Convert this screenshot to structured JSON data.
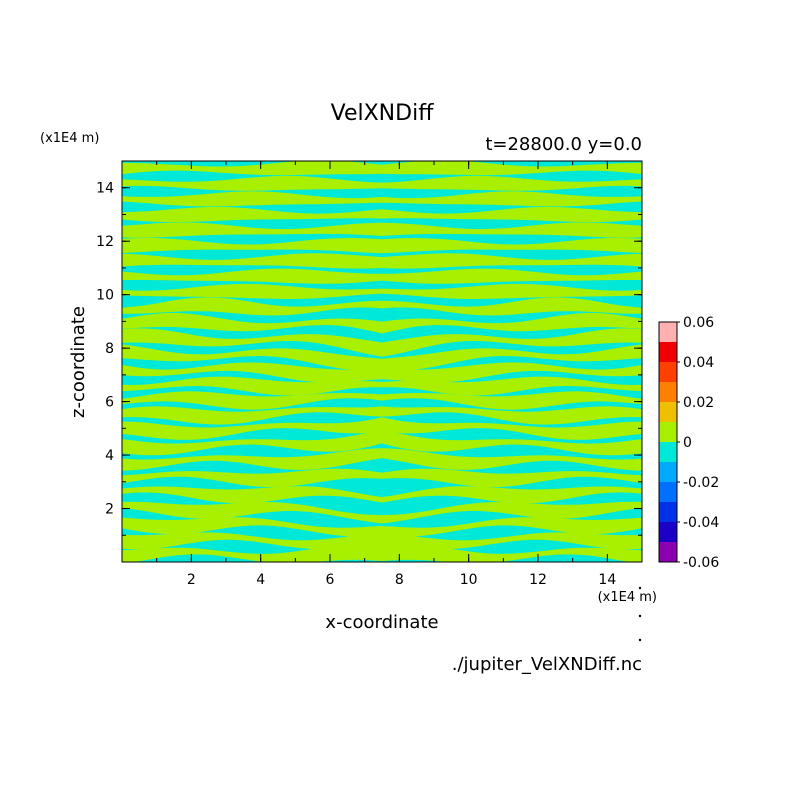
{
  "chart_data": {
    "type": "heatmap",
    "title": "VelXNDiff",
    "subtitle": "t=28800.0 y=0.0",
    "xlabel": "x-coordinate",
    "ylabel": "z-coordinate",
    "x_unit": "(x1E4 m)",
    "y_unit": "(x1E4 m)",
    "xlim": [
      0,
      15
    ],
    "ylim": [
      0,
      15
    ],
    "x_ticks": [
      "2",
      "4",
      "6",
      "8",
      "10",
      "12",
      "14"
    ],
    "y_ticks": [
      "2",
      "4",
      "6",
      "8",
      "10",
      "12",
      "14"
    ],
    "colorbar": {
      "levels": [
        -0.06,
        -0.05,
        -0.04,
        -0.03,
        -0.02,
        -0.01,
        0,
        0.01,
        0.02,
        0.03,
        0.04,
        0.05,
        0.06
      ],
      "tick_labels": [
        "0.06",
        "0.04",
        "0.02",
        "0",
        "-0.02",
        "-0.04",
        "-0.06"
      ],
      "colors": [
        "#8a00b0",
        "#1c00c8",
        "#0030e8",
        "#0070ff",
        "#00aaff",
        "#00e8d8",
        "#a8f000",
        "#f0c000",
        "#ff8000",
        "#ff4000",
        "#f00000",
        "#ffb0b0"
      ]
    },
    "field_colors": {
      "negative": "#00e8d8",
      "positive": "#a8f000"
    },
    "band_count": 26,
    "mirror_x": 7.5
  },
  "footer": {
    "file": "./jupiter_VelXNDiff.nc"
  }
}
